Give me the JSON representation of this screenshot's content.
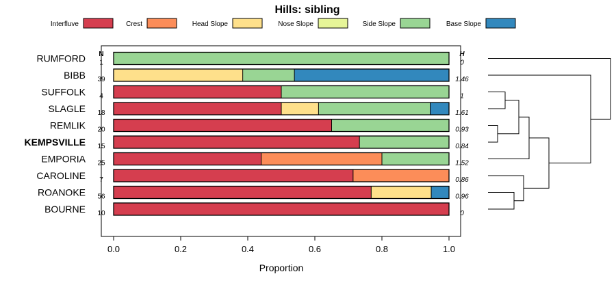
{
  "chart_data": {
    "type": "bar",
    "orientation": "horizontal",
    "stacked": true,
    "title": "Hills: sibling",
    "xlabel": "Proportion",
    "ylabel": "",
    "xlim": [
      0,
      1
    ],
    "xticks": [
      "0.0",
      "0.2",
      "0.4",
      "0.6",
      "0.8",
      "1.0"
    ],
    "left_header": "N",
    "right_header": "H",
    "legend": [
      {
        "label": "Interfluve",
        "color": "#D53E4F"
      },
      {
        "label": "Crest",
        "color": "#FC8D59"
      },
      {
        "label": "Head Slope",
        "color": "#FEE08B"
      },
      {
        "label": "Nose Slope",
        "color": "#E6F598"
      },
      {
        "label": "Side Slope",
        "color": "#99D594"
      },
      {
        "label": "Base Slope",
        "color": "#3288BD"
      }
    ],
    "rows": [
      {
        "name": "RUMFORD",
        "n": "1",
        "h": "0",
        "bold": false,
        "values": [
          0,
          0,
          0,
          0,
          1.0,
          0
        ]
      },
      {
        "name": "BIBB",
        "n": "39",
        "h": "1.46",
        "bold": false,
        "values": [
          0,
          0,
          0.385,
          0,
          0.154,
          0.461
        ]
      },
      {
        "name": "SUFFOLK",
        "n": "4",
        "h": "1",
        "bold": false,
        "values": [
          0.5,
          0,
          0,
          0,
          0.5,
          0
        ]
      },
      {
        "name": "SLAGLE",
        "n": "18",
        "h": "1.61",
        "bold": false,
        "values": [
          0.5,
          0,
          0.111,
          0,
          0.333,
          0.056
        ]
      },
      {
        "name": "REMLIK",
        "n": "20",
        "h": "0.93",
        "bold": false,
        "values": [
          0.65,
          0,
          0,
          0,
          0.35,
          0
        ]
      },
      {
        "name": "KEMPSVILLE",
        "n": "15",
        "h": "0.84",
        "bold": true,
        "values": [
          0.733,
          0,
          0,
          0,
          0.267,
          0
        ]
      },
      {
        "name": "EMPORIA",
        "n": "25",
        "h": "1.52",
        "bold": false,
        "values": [
          0.44,
          0.36,
          0,
          0,
          0.2,
          0
        ]
      },
      {
        "name": "CAROLINE",
        "n": "7",
        "h": "0.86",
        "bold": false,
        "values": [
          0.714,
          0.286,
          0,
          0,
          0,
          0
        ]
      },
      {
        "name": "ROANOKE",
        "n": "56",
        "h": "0.96",
        "bold": false,
        "values": [
          0.768,
          0,
          0.179,
          0,
          0,
          0.053
        ]
      },
      {
        "name": "BOURNE",
        "n": "10",
        "h": "0",
        "bold": false,
        "values": [
          1.0,
          0,
          0,
          0,
          0,
          0
        ]
      }
    ]
  }
}
